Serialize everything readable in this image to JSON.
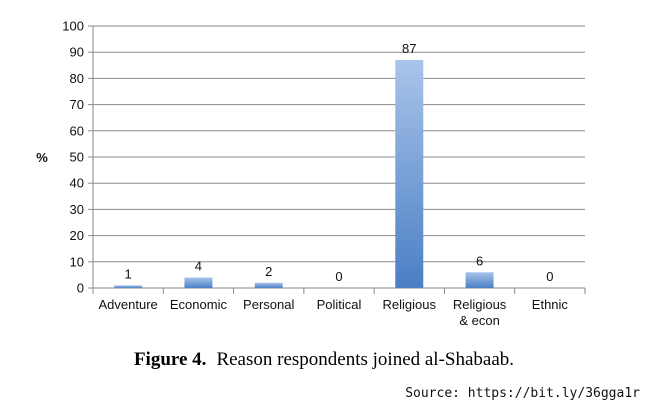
{
  "chart_data": {
    "type": "bar",
    "categories": [
      [
        "Adventure"
      ],
      [
        "Economic"
      ],
      [
        "Personal"
      ],
      [
        "Political"
      ],
      [
        "Religious"
      ],
      [
        "Religious",
        "& econ"
      ],
      [
        "Ethnic"
      ]
    ],
    "values": [
      1,
      4,
      2,
      0,
      87,
      6,
      0
    ],
    "data_labels": [
      "1",
      "4",
      "2",
      "0",
      "87",
      "6",
      "0"
    ],
    "ylabel": "%",
    "ylim": [
      0,
      100
    ],
    "yticks": [
      0,
      10,
      20,
      30,
      40,
      50,
      60,
      70,
      80,
      90,
      100
    ],
    "grid": true,
    "bar_gradient": [
      "#a9c4ea",
      "#4a7fc4"
    ]
  },
  "caption": {
    "label": "Figure 4.",
    "text": "Reason respondents joined al-Shabaab."
  },
  "source": "Source: https://bit.ly/36gga1r"
}
